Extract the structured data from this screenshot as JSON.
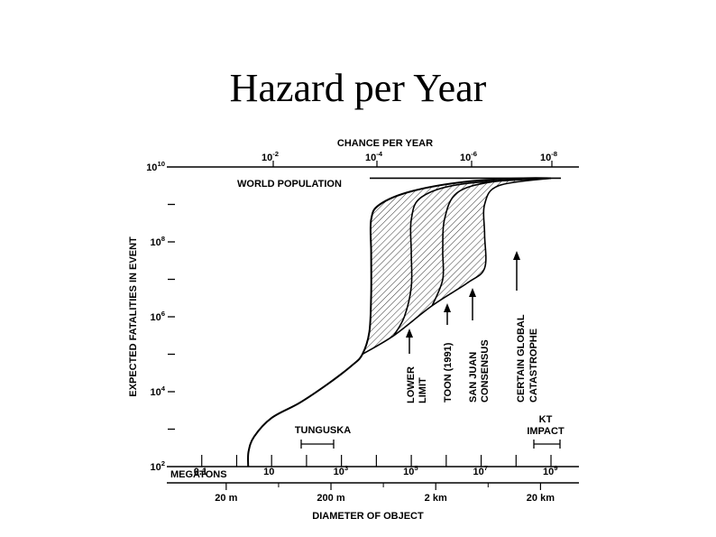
{
  "slide": {
    "title": "Hazard per Year"
  },
  "chart_data": {
    "type": "line",
    "title": "Hazard per Year",
    "top_axis_label": "CHANCE PER YEAR",
    "top_ticks": [
      {
        "mantissa": "10",
        "exponent": "-2"
      },
      {
        "mantissa": "10",
        "exponent": "-4"
      },
      {
        "mantissa": "10",
        "exponent": "-6"
      },
      {
        "mantissa": "10",
        "exponent": "-8"
      }
    ],
    "ylabel": "EXPECTED FATALITIES IN EVENT",
    "y_ticks": [
      {
        "mantissa": "10",
        "exponent": "10"
      },
      {
        "mantissa": "10",
        "exponent": "8"
      },
      {
        "mantissa": "10",
        "exponent": "6"
      },
      {
        "mantissa": "10",
        "exponent": "4"
      },
      {
        "mantissa": "10",
        "exponent": "2"
      }
    ],
    "ylim_log10": [
      2,
      10
    ],
    "xlim_log10_megatons": [
      -2.0,
      9.8
    ],
    "world_population_label": "WORLD POPULATION",
    "world_population_log10": 9.7,
    "megatons_label": "MEGATONS",
    "megaton_ticks": [
      {
        "mantissa": "0.1",
        "exponent": ""
      },
      {
        "mantissa": "10",
        "exponent": ""
      },
      {
        "mantissa": "10",
        "exponent": "3"
      },
      {
        "mantissa": "10",
        "exponent": "5"
      },
      {
        "mantissa": "10",
        "exponent": "7"
      },
      {
        "mantissa": "10",
        "exponent": "9"
      }
    ],
    "diameter_ticks": [
      "20 m",
      "200 m",
      "2 km",
      "20 km"
    ],
    "xlabel": "DIAMETER OF OBJECT",
    "annotations": {
      "tunguska": "TUNGUSKA",
      "kt_line1": "KT",
      "kt_line2": "IMPACT",
      "lower_limit_line1": "LOWER",
      "lower_limit_line2": "LIMIT",
      "toon": "TOON (1991)",
      "san_juan_line1": "SAN JUAN",
      "san_juan_line2": "CONSENSUS",
      "certain_line1": "CERTAIN GLOBAL",
      "certain_line2": "CATASTROPHE"
    },
    "series": [
      {
        "name": "LOWER LIMIT",
        "points_log10": [
          [
            0.33,
            2.0
          ],
          [
            0.34,
            2.4
          ],
          [
            0.5,
            2.8
          ],
          [
            1.0,
            3.3
          ],
          [
            1.8,
            3.7
          ],
          [
            2.6,
            4.2
          ],
          [
            3.3,
            4.7
          ],
          [
            3.6,
            5.0
          ],
          [
            3.8,
            5.6
          ],
          [
            3.85,
            6.6
          ],
          [
            3.85,
            7.7
          ],
          [
            3.85,
            8.6
          ],
          [
            4.1,
            9.0
          ],
          [
            5.0,
            9.35
          ],
          [
            6.5,
            9.6
          ],
          [
            8.2,
            9.7
          ],
          [
            9.0,
            9.7
          ]
        ]
      },
      {
        "name": "TOON (1991)",
        "points_log10": [
          [
            4.5,
            5.5
          ],
          [
            4.8,
            6.0
          ],
          [
            5.0,
            6.8
          ],
          [
            5.0,
            7.7
          ],
          [
            5.0,
            8.6
          ],
          [
            5.3,
            9.2
          ],
          [
            6.5,
            9.55
          ],
          [
            9.0,
            9.7
          ]
        ]
      },
      {
        "name": "SAN JUAN CONSENSUS",
        "points_log10": [
          [
            5.6,
            6.3
          ],
          [
            5.9,
            7.0
          ],
          [
            5.9,
            7.8
          ],
          [
            5.95,
            8.6
          ],
          [
            6.3,
            9.3
          ],
          [
            7.3,
            9.6
          ],
          [
            9.0,
            9.7
          ]
        ]
      },
      {
        "name": "CERTAIN GLOBAL CATASTROPHE",
        "points_log10": [
          [
            3.6,
            5.0
          ],
          [
            4.5,
            5.5
          ],
          [
            5.6,
            6.3
          ],
          [
            6.6,
            6.9
          ],
          [
            7.1,
            7.3
          ],
          [
            7.1,
            8.2
          ],
          [
            7.1,
            9.0
          ],
          [
            7.5,
            9.5
          ],
          [
            9.0,
            9.7
          ]
        ]
      }
    ]
  }
}
